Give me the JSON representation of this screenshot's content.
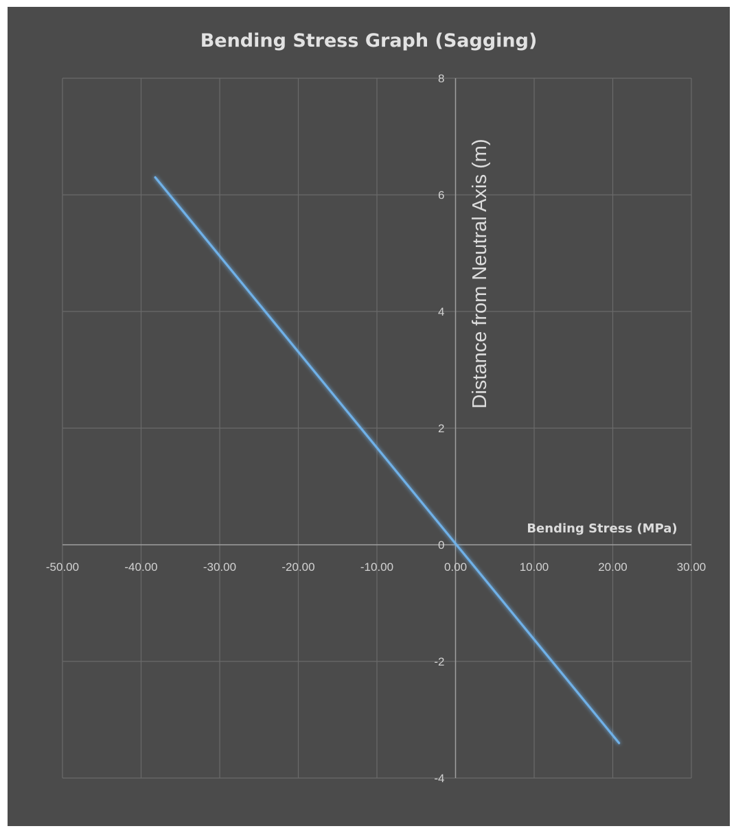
{
  "chart_data": {
    "type": "line",
    "title": "Bending Stress Graph (Sagging)",
    "xlabel": "Bending Stress (MPa)",
    "ylabel": "Distance from Neutral Axis (m)",
    "xlim": [
      -50,
      30
    ],
    "ylim": [
      -4,
      8
    ],
    "xticks": [
      -50,
      -40,
      -30,
      -20,
      -10,
      0,
      10,
      20,
      30
    ],
    "xtick_labels": [
      "-50.00",
      "-40.00",
      "-30.00",
      "-20.00",
      "-10.00",
      "0.00",
      "10.00",
      "20.00",
      "30.00"
    ],
    "yticks": [
      -4,
      -2,
      0,
      2,
      4,
      6,
      8
    ],
    "ytick_labels": [
      "-4",
      "-2",
      "0",
      "2",
      "4",
      "6",
      "8"
    ],
    "grid": true,
    "series": [
      {
        "x": [
          -38.2,
          20.8
        ],
        "y": [
          6.3,
          -3.4
        ]
      }
    ],
    "colors": {
      "background": "#4b4b4b",
      "line": "#6fb1e8",
      "grid": "#6a6a6a",
      "text": "#d8d8d8"
    }
  }
}
